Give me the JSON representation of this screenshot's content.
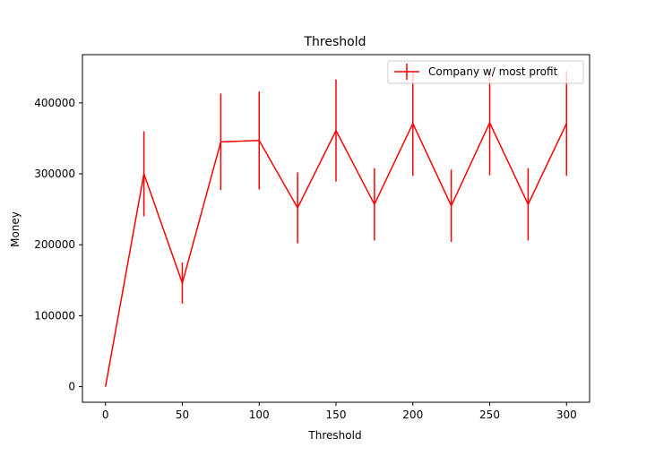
{
  "chart_data": {
    "type": "line",
    "title": "Threshold",
    "xlabel": "Threshold",
    "ylabel": "Money",
    "xlim": [
      -15,
      315
    ],
    "ylim": [
      -22000,
      468000
    ],
    "xticks": [
      0,
      50,
      100,
      150,
      200,
      250,
      300
    ],
    "yticks": [
      0,
      100000,
      200000,
      300000,
      400000
    ],
    "grid": false,
    "legend_position": "top-right",
    "color": "#ff0000",
    "x": [
      0,
      25,
      50,
      75,
      100,
      125,
      150,
      175,
      200,
      225,
      250,
      275,
      300
    ],
    "series": [
      {
        "name": "Company w/ most profit",
        "values": [
          0,
          300000,
          146000,
          345000,
          347000,
          252000,
          361000,
          257000,
          371000,
          255000,
          372000,
          257000,
          371000
        ],
        "error": [
          0,
          60000,
          29000,
          68000,
          69000,
          50000,
          72000,
          51000,
          74000,
          51000,
          74000,
          51000,
          74000
        ]
      }
    ]
  }
}
